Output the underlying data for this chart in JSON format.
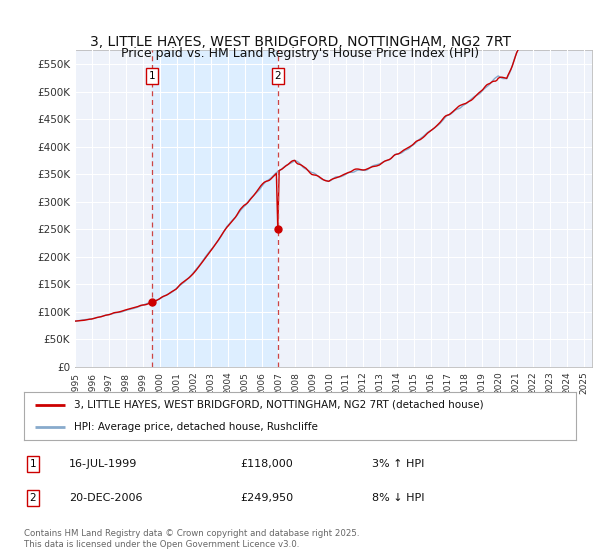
{
  "title": "3, LITTLE HAYES, WEST BRIDGFORD, NOTTINGHAM, NG2 7RT",
  "subtitle": "Price paid vs. HM Land Registry's House Price Index (HPI)",
  "ylabel_ticks": [
    "£0",
    "£50K",
    "£100K",
    "£150K",
    "£200K",
    "£250K",
    "£300K",
    "£350K",
    "£400K",
    "£450K",
    "£500K",
    "£550K"
  ],
  "ytick_vals": [
    0,
    50000,
    100000,
    150000,
    200000,
    250000,
    300000,
    350000,
    400000,
    450000,
    500000,
    550000
  ],
  "ylim": [
    0,
    575000
  ],
  "xlim_start": 1995.0,
  "xlim_end": 2025.5,
  "vline1_x": 1999.54,
  "vline2_x": 2006.97,
  "purchase1_date": "16-JUL-1999",
  "purchase1_price": "£118,000",
  "purchase1_hpi": "3% ↑ HPI",
  "purchase2_date": "20-DEC-2006",
  "purchase2_price": "£249,950",
  "purchase2_hpi": "8% ↓ HPI",
  "legend_line1": "3, LITTLE HAYES, WEST BRIDGFORD, NOTTINGHAM, NG2 7RT (detached house)",
  "legend_line2": "HPI: Average price, detached house, Rushcliffe",
  "footer_line1": "Contains HM Land Registry data © Crown copyright and database right 2025.",
  "footer_line2": "This data is licensed under the Open Government Licence v3.0.",
  "line_color_red": "#cc0000",
  "line_color_blue": "#88aacc",
  "shade_color": "#ddeeff",
  "background_color": "#ffffff",
  "chart_bg": "#eef2fa",
  "grid_color": "#ffffff",
  "title_fontsize": 10,
  "subtitle_fontsize": 9
}
